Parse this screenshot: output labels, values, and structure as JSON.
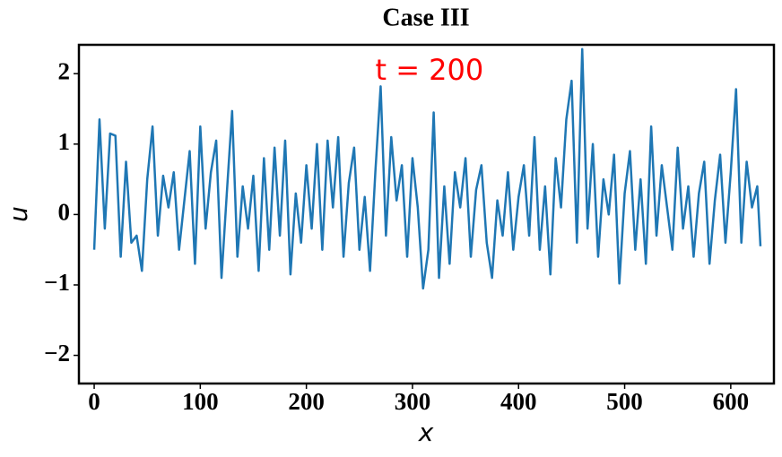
{
  "chart_data": {
    "type": "line",
    "title": "Case III",
    "xlabel": "x",
    "ylabel": "u",
    "annotation": {
      "text": "t = 200",
      "x": 316,
      "y": 2.03,
      "color": "#ff0000"
    },
    "x": [
      0,
      5,
      10,
      15,
      20,
      25,
      30,
      35,
      40,
      45,
      50,
      55,
      60,
      65,
      70,
      75,
      80,
      85,
      90,
      95,
      100,
      105,
      110,
      115,
      120,
      125,
      130,
      135,
      140,
      145,
      150,
      155,
      160,
      165,
      170,
      175,
      180,
      185,
      190,
      195,
      200,
      205,
      210,
      215,
      220,
      225,
      230,
      235,
      240,
      245,
      250,
      255,
      260,
      265,
      270,
      275,
      280,
      285,
      290,
      295,
      300,
      305,
      310,
      315,
      320,
      325,
      330,
      335,
      340,
      345,
      350,
      355,
      360,
      365,
      370,
      375,
      380,
      385,
      390,
      395,
      400,
      405,
      410,
      415,
      420,
      425,
      430,
      435,
      440,
      445,
      450,
      455,
      460,
      465,
      470,
      475,
      480,
      485,
      490,
      495,
      500,
      505,
      510,
      515,
      520,
      525,
      530,
      535,
      540,
      545,
      550,
      555,
      560,
      565,
      570,
      575,
      580,
      585,
      590,
      595,
      600,
      605,
      610,
      615,
      620,
      625,
      628
    ],
    "series": [
      {
        "color": "#1f77b4",
        "values": [
          -0.5,
          1.35,
          -0.2,
          1.15,
          1.12,
          -0.6,
          0.75,
          -0.4,
          -0.3,
          -0.8,
          0.5,
          1.25,
          -0.3,
          0.55,
          0.1,
          0.6,
          -0.5,
          0.2,
          0.9,
          -0.7,
          1.25,
          -0.2,
          0.6,
          1.05,
          -0.9,
          0.3,
          1.47,
          -0.6,
          0.4,
          -0.2,
          0.55,
          -0.8,
          0.8,
          -0.5,
          0.95,
          -0.3,
          1.05,
          -0.85,
          0.3,
          -0.4,
          0.7,
          -0.2,
          1.0,
          -0.5,
          1.05,
          0.1,
          1.1,
          -0.6,
          0.45,
          0.95,
          -0.5,
          0.25,
          -0.8,
          0.6,
          1.82,
          -0.3,
          1.1,
          0.2,
          0.7,
          -0.6,
          0.8,
          0.1,
          -1.05,
          -0.5,
          1.45,
          -0.9,
          0.4,
          -0.7,
          0.6,
          0.1,
          0.8,
          -0.6,
          0.35,
          0.7,
          -0.4,
          -0.9,
          0.2,
          -0.3,
          0.6,
          -0.5,
          0.25,
          0.7,
          -0.3,
          1.1,
          -0.5,
          0.4,
          -0.85,
          0.8,
          0.1,
          1.35,
          1.9,
          -0.4,
          2.35,
          -0.2,
          1.0,
          -0.6,
          0.5,
          0.0,
          0.85,
          -0.98,
          0.3,
          0.9,
          -0.5,
          0.5,
          -0.7,
          1.25,
          -0.3,
          0.7,
          0.1,
          -0.5,
          0.95,
          -0.2,
          0.4,
          -0.6,
          0.3,
          0.75,
          -0.7,
          0.2,
          0.85,
          -0.4,
          0.6,
          1.78,
          -0.4,
          0.75,
          0.1,
          0.4,
          -0.45
        ]
      }
    ],
    "xlim": [
      -14.4,
      640.7
    ],
    "ylim": [
      -2.4,
      2.41
    ],
    "xticks": [
      0,
      100,
      200,
      300,
      400,
      500,
      600
    ],
    "yticks": [
      {
        "value": -2,
        "label": "−2"
      },
      {
        "value": -1,
        "label": "−1"
      },
      0,
      1,
      2
    ]
  }
}
